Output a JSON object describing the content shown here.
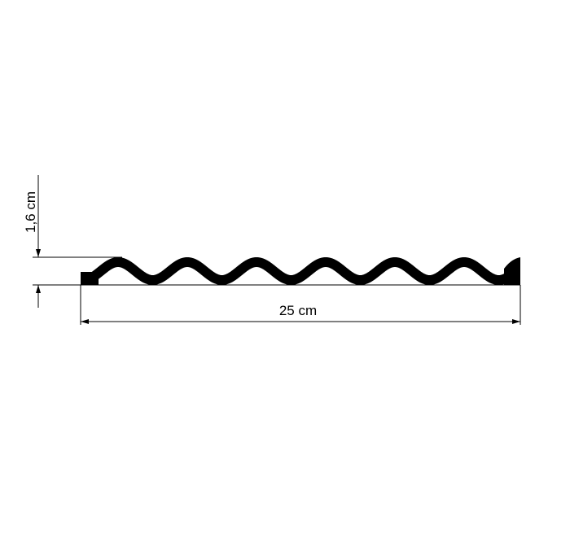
{
  "dimensions": {
    "height_label": "1,6 cm",
    "width_label": "25 cm"
  },
  "colors": {
    "profile": "#000000",
    "lines": "#000000"
  }
}
